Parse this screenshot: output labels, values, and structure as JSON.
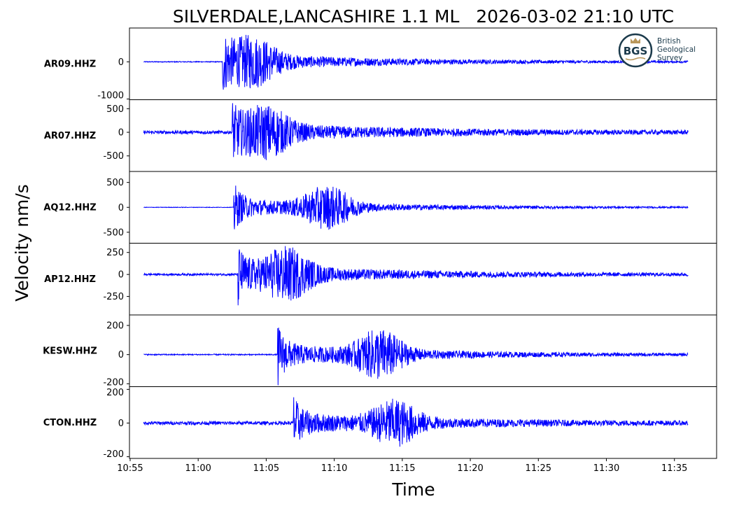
{
  "chart_data": {
    "type": "line",
    "title": "SILVERDALE,LANCASHIRE 1.1 ML   2026-03-02 21:10 UTC",
    "xlabel": "Time",
    "ylabel": "Velocity nm/s",
    "xlim": [
      "10:54:57",
      "11:38:06"
    ],
    "xticks": [
      "10:55",
      "11:00",
      "11:05",
      "11:10",
      "11:15",
      "11:20",
      "11:25",
      "11:30",
      "11:35"
    ],
    "data_start": "10:56",
    "data_end": "11:36",
    "grid": false,
    "line_color": "#0000ff",
    "logo": {
      "abbr": "BGS",
      "lines": [
        "British",
        "Geological",
        "Survey"
      ],
      "color": "#1b3a4b",
      "accent": "#b9975b"
    },
    "series": [
      {
        "name": "AR09.HHZ",
        "ylim": [
          -1020,
          910
        ],
        "yticks": [
          0,
          -1000
        ],
        "p_onset": "11:01:47",
        "s_arrival": "11:04:00",
        "max": 850,
        "min": -950,
        "noise": 12
      },
      {
        "name": "AR07.HHZ",
        "ylim": [
          -830,
          690
        ],
        "yticks": [
          500,
          0,
          -500
        ],
        "p_onset": "11:02:30",
        "s_arrival": "11:05:00",
        "max": 700,
        "min": -750,
        "noise": 35
      },
      {
        "name": "AQ12.HHZ",
        "ylim": [
          -720,
          720
        ],
        "yticks": [
          500,
          0,
          -500
        ],
        "p_onset": "11:02:37",
        "s_arrival": "11:09:30",
        "max": 650,
        "min": -650,
        "noise": 5
      },
      {
        "name": "AP12.HHZ",
        "ylim": [
          -460,
          355
        ],
        "yticks": [
          250,
          0,
          -250
        ],
        "p_onset": "11:02:55",
        "s_arrival": "11:06:30",
        "max": 330,
        "min": -430,
        "noise": 12
      },
      {
        "name": "KESW.HHZ",
        "ylim": [
          -220,
          272
        ],
        "yticks": [
          200,
          0,
          -200
        ],
        "p_onset": "11:05:50",
        "s_arrival": "11:13:20",
        "max": 260,
        "min": -215,
        "noise": 4
      },
      {
        "name": "CTON.HHZ",
        "ylim": [
          -210,
          216
        ],
        "yticks": [
          200,
          0,
          -200
        ],
        "p_onset": "11:07:00",
        "s_arrival": "11:14:30",
        "max": 190,
        "min": -200,
        "noise": 10
      }
    ]
  }
}
